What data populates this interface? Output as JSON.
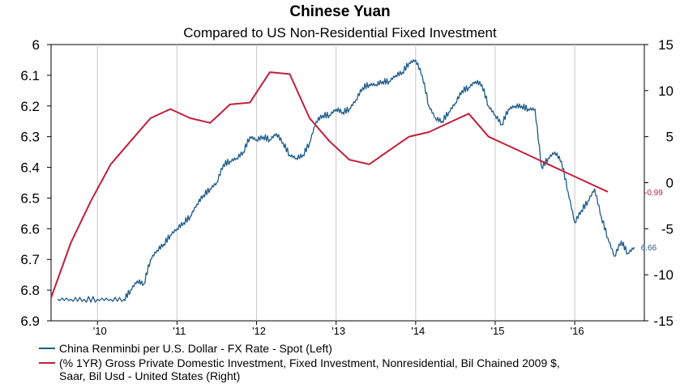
{
  "chart_data": {
    "type": "line",
    "title": "Chinese Yuan",
    "subtitle": "Compared to US Non-Residential Fixed Investment",
    "x_ticks": [
      "'10",
      "'11",
      "'12",
      "'13",
      "'14",
      "'15",
      "'16"
    ],
    "y_left": {
      "min": 6,
      "max": 6.9,
      "inverted": true,
      "ticks": [
        "6",
        "6.1",
        "6.2",
        "6.3",
        "6.4",
        "6.5",
        "6.6",
        "6.7",
        "6.8",
        "6.9"
      ]
    },
    "y_right": {
      "min": -15,
      "max": 15,
      "ticks": [
        "15",
        "10",
        "5",
        "0",
        "-5",
        "-10",
        "-15"
      ]
    },
    "grid": "vertical",
    "legend": "bottom",
    "series": [
      {
        "name": "China Renminbi per U.S. Dollar - FX Rate - Spot  (Left)",
        "axis": "left",
        "color": "#1f5b8a",
        "last_label": "6.66",
        "points": [
          [
            "2009-07",
            6.83
          ],
          [
            "2009-09",
            6.83
          ],
          [
            "2009-11",
            6.83
          ],
          [
            "2010-01",
            6.83
          ],
          [
            "2010-03",
            6.83
          ],
          [
            "2010-05",
            6.83
          ],
          [
            "2010-06",
            6.8
          ],
          [
            "2010-07",
            6.77
          ],
          [
            "2010-08",
            6.78
          ],
          [
            "2010-09",
            6.7
          ],
          [
            "2010-10",
            6.67
          ],
          [
            "2010-11",
            6.65
          ],
          [
            "2010-12",
            6.62
          ],
          [
            "2011-01",
            6.6
          ],
          [
            "2011-02",
            6.58
          ],
          [
            "2011-03",
            6.56
          ],
          [
            "2011-04",
            6.52
          ],
          [
            "2011-05",
            6.49
          ],
          [
            "2011-06",
            6.47
          ],
          [
            "2011-07",
            6.45
          ],
          [
            "2011-08",
            6.39
          ],
          [
            "2011-09",
            6.38
          ],
          [
            "2011-10",
            6.37
          ],
          [
            "2011-11",
            6.35
          ],
          [
            "2011-12",
            6.3
          ],
          [
            "2012-01",
            6.31
          ],
          [
            "2012-02",
            6.3
          ],
          [
            "2012-03",
            6.31
          ],
          [
            "2012-04",
            6.29
          ],
          [
            "2012-05",
            6.32
          ],
          [
            "2012-06",
            6.36
          ],
          [
            "2012-07",
            6.37
          ],
          [
            "2012-08",
            6.36
          ],
          [
            "2012-09",
            6.32
          ],
          [
            "2012-10",
            6.25
          ],
          [
            "2012-11",
            6.23
          ],
          [
            "2012-12",
            6.23
          ],
          [
            "2013-01",
            6.21
          ],
          [
            "2013-02",
            6.22
          ],
          [
            "2013-03",
            6.21
          ],
          [
            "2013-04",
            6.18
          ],
          [
            "2013-05",
            6.14
          ],
          [
            "2013-06",
            6.13
          ],
          [
            "2013-07",
            6.13
          ],
          [
            "2013-08",
            6.12
          ],
          [
            "2013-09",
            6.12
          ],
          [
            "2013-10",
            6.1
          ],
          [
            "2013-11",
            6.09
          ],
          [
            "2013-12",
            6.06
          ],
          [
            "2014-01",
            6.05
          ],
          [
            "2014-02",
            6.1
          ],
          [
            "2014-03",
            6.2
          ],
          [
            "2014-04",
            6.24
          ],
          [
            "2014-05",
            6.25
          ],
          [
            "2014-06",
            6.22
          ],
          [
            "2014-07",
            6.19
          ],
          [
            "2014-08",
            6.15
          ],
          [
            "2014-09",
            6.14
          ],
          [
            "2014-10",
            6.12
          ],
          [
            "2014-11",
            6.13
          ],
          [
            "2014-12",
            6.2
          ],
          [
            "2015-01",
            6.23
          ],
          [
            "2015-02",
            6.26
          ],
          [
            "2015-03",
            6.21
          ],
          [
            "2015-04",
            6.2
          ],
          [
            "2015-05",
            6.2
          ],
          [
            "2015-06",
            6.21
          ],
          [
            "2015-07",
            6.21
          ],
          [
            "2015-08",
            6.4
          ],
          [
            "2015-09",
            6.37
          ],
          [
            "2015-10",
            6.35
          ],
          [
            "2015-11",
            6.38
          ],
          [
            "2015-12",
            6.48
          ],
          [
            "2016-01",
            6.58
          ],
          [
            "2016-02",
            6.54
          ],
          [
            "2016-03",
            6.51
          ],
          [
            "2016-04",
            6.47
          ],
          [
            "2016-05",
            6.56
          ],
          [
            "2016-06",
            6.63
          ],
          [
            "2016-07",
            6.69
          ],
          [
            "2016-08",
            6.64
          ],
          [
            "2016-09",
            6.68
          ],
          [
            "2016-10",
            6.66
          ]
        ]
      },
      {
        "name": "(% 1YR) Gross Private Domestic Investment, Fixed Investment, Nonresidential, Bil Chained 2009 $, Saar, Bil Usd - United States  (Right)",
        "axis": "right",
        "color": "#c0203a",
        "last_label": "-0.99",
        "points": [
          [
            "2009-06",
            -12.5
          ],
          [
            "2009-09",
            -6.5
          ],
          [
            "2009-12",
            -2.0
          ],
          [
            "2010-03",
            2.0
          ],
          [
            "2010-06",
            4.5
          ],
          [
            "2010-09",
            7.0
          ],
          [
            "2010-12",
            8.0
          ],
          [
            "2011-03",
            7.0
          ],
          [
            "2011-06",
            6.5
          ],
          [
            "2011-09",
            8.5
          ],
          [
            "2011-12",
            8.7
          ],
          [
            "2012-03",
            12.0
          ],
          [
            "2012-06",
            11.8
          ],
          [
            "2012-09",
            7.0
          ],
          [
            "2012-12",
            4.5
          ],
          [
            "2013-03",
            2.5
          ],
          [
            "2013-06",
            2.0
          ],
          [
            "2013-09",
            3.5
          ],
          [
            "2013-12",
            5.0
          ],
          [
            "2014-03",
            5.5
          ],
          [
            "2014-06",
            6.5
          ],
          [
            "2014-09",
            7.5
          ],
          [
            "2014-12",
            5.0
          ],
          [
            "2015-03",
            4.0
          ],
          [
            "2015-06",
            3.0
          ],
          [
            "2015-09",
            2.0
          ],
          [
            "2015-12",
            1.0
          ],
          [
            "2016-03",
            0.0
          ],
          [
            "2016-06",
            -0.99
          ]
        ]
      }
    ]
  }
}
